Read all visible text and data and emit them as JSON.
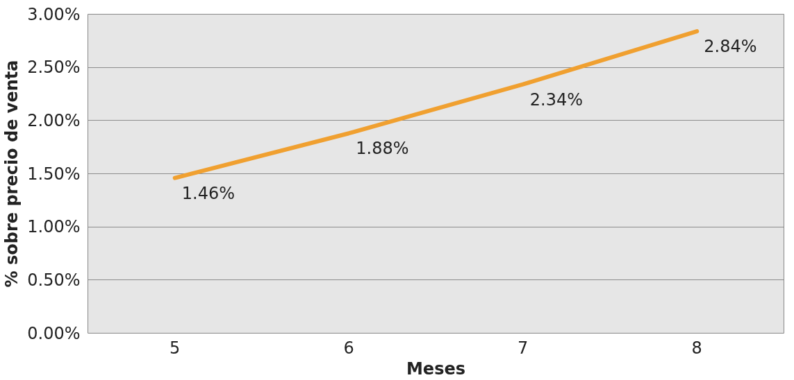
{
  "chart_data": {
    "type": "line",
    "xlabel": "Meses",
    "ylabel": "% sobre precio de venta",
    "categories": [
      "5",
      "6",
      "7",
      "8"
    ],
    "series": [
      {
        "color": "#f0a030",
        "values": [
          1.46,
          1.88,
          2.34,
          2.84
        ],
        "value_labels": [
          "1.46%",
          "1.88%",
          "2.34%",
          "2.84%"
        ]
      }
    ],
    "ylim": [
      0,
      3
    ],
    "yticks": [
      {
        "value": 0,
        "label": "0.00%"
      },
      {
        "value": 0.5,
        "label": "0.50%"
      },
      {
        "value": 1,
        "label": "1.00%"
      },
      {
        "value": 1.5,
        "label": "1.50%"
      },
      {
        "value": 2,
        "label": "2.00%"
      },
      {
        "value": 2.5,
        "label": "2.50%"
      },
      {
        "value": 3,
        "label": "3.00%"
      }
    ],
    "grid": "y",
    "marker": "none",
    "line_style": "solid"
  }
}
